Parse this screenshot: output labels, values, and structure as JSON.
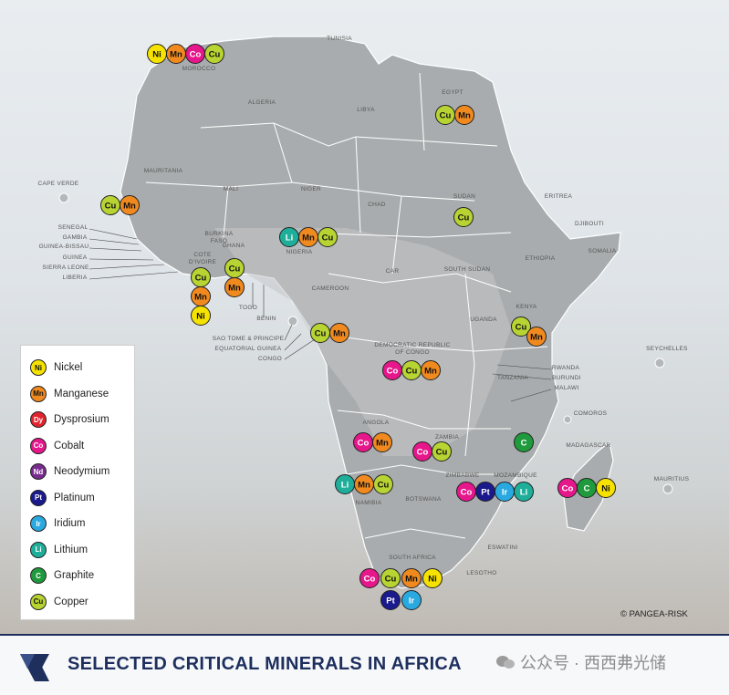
{
  "title": "SELECTED CRITICAL MINERALS IN AFRICA",
  "credit": "© PANGEA-RISK",
  "watermark": "公众号 · 西西弗光储",
  "legend": [
    {
      "sym": "Ni",
      "name": "Nickel",
      "color": "#f6e200"
    },
    {
      "sym": "Mn",
      "name": "Manganese",
      "color": "#f08a1f"
    },
    {
      "sym": "Dy",
      "name": "Dysprosium",
      "color": "#e2242e"
    },
    {
      "sym": "Co",
      "name": "Cobalt",
      "color": "#e6168b"
    },
    {
      "sym": "Nd",
      "name": "Neodymium",
      "color": "#7a2b8f"
    },
    {
      "sym": "Pt",
      "name": "Platinum",
      "color": "#1a1a8c"
    },
    {
      "sym": "Ir",
      "name": "Iridium",
      "color": "#2aa9e0"
    },
    {
      "sym": "Li",
      "name": "Lithium",
      "color": "#1fae9a"
    },
    {
      "sym": "C",
      "name": "Graphite",
      "color": "#1f9a3c"
    },
    {
      "sym": "Cu",
      "name": "Copper",
      "color": "#b8d432"
    }
  ],
  "countries": [
    "TUNISIA",
    "MOROCCO",
    "ALGERIA",
    "LIBYA",
    "EGYPT",
    "MAURITANIA",
    "MALI",
    "NIGER",
    "CHAD",
    "SUDAN",
    "ERITREA",
    "DJIBOUTI",
    "CAPE VERDE",
    "SENEGAL",
    "GAMBIA",
    "GUINEA-BISSAU",
    "GUINEA",
    "SIERRA LEONE",
    "LIBERIA",
    "BURKINA FASO",
    "GHANA",
    "COTE D'IVOIRE",
    "TOGO",
    "BENIN",
    "NIGERIA",
    "ETHIOPIA",
    "SOMALIA",
    "CAMEROON",
    "CAR",
    "SOUTH SUDAN",
    "SAO TOME & PRINCIPE",
    "EQUATORIAL GUINEA",
    "CONGO",
    "UGANDA",
    "KENYA",
    "DEMOCRATIC REPUBLIC OF CONGO",
    "RWANDA",
    "BURUNDI",
    "TANZANIA",
    "MALAWI",
    "SEYCHELLES",
    "COMOROS",
    "ANGOLA",
    "ZAMBIA",
    "ZIMBABWE",
    "MOZAMBIQUE",
    "MADAGASCAR",
    "MAURITIUS",
    "NAMIBIA",
    "BOTSWANA",
    "ESWATINI",
    "SOUTH AFRICA",
    "LESOTHO"
  ],
  "deposits": [
    {
      "country": "MOROCCO",
      "minerals": [
        "Ni",
        "Mn",
        "Co",
        "Cu"
      ]
    },
    {
      "country": "EGYPT",
      "minerals": [
        "Cu",
        "Mn"
      ]
    },
    {
      "country": "SENEGAL",
      "minerals": [
        "Cu",
        "Mn"
      ]
    },
    {
      "country": "SUDAN",
      "minerals": [
        "Cu"
      ]
    },
    {
      "country": "NIGERIA",
      "minerals": [
        "Li",
        "Mn",
        "Cu"
      ]
    },
    {
      "country": "GHANA",
      "minerals": [
        "Cu",
        "Mn"
      ]
    },
    {
      "country": "COTE D'IVOIRE",
      "minerals": [
        "Cu",
        "Mn",
        "Ni"
      ]
    },
    {
      "country": "CAMEROON",
      "minerals": [
        "Cu",
        "Mn"
      ]
    },
    {
      "country": "KENYA",
      "minerals": [
        "Cu",
        "Mn"
      ]
    },
    {
      "country": "DEMOCRATIC REPUBLIC OF CONGO",
      "minerals": [
        "Co",
        "Cu",
        "Mn"
      ]
    },
    {
      "country": "ANGOLA",
      "minerals": [
        "Co",
        "Mn"
      ]
    },
    {
      "country": "ZAMBIA",
      "minerals": [
        "Co",
        "Cu"
      ]
    },
    {
      "country": "MOZAMBIQUE",
      "minerals": [
        "C"
      ]
    },
    {
      "country": "NAMIBIA",
      "minerals": [
        "Li",
        "Mn",
        "Cu"
      ]
    },
    {
      "country": "ZIMBABWE",
      "minerals": [
        "Co",
        "Pt",
        "Ir",
        "Li"
      ]
    },
    {
      "country": "MADAGASCAR",
      "minerals": [
        "Co",
        "C",
        "Ni"
      ]
    },
    {
      "country": "SOUTH AFRICA",
      "minerals": [
        "Co",
        "Cu",
        "Mn",
        "Ni",
        "Pt",
        "Ir"
      ]
    }
  ]
}
